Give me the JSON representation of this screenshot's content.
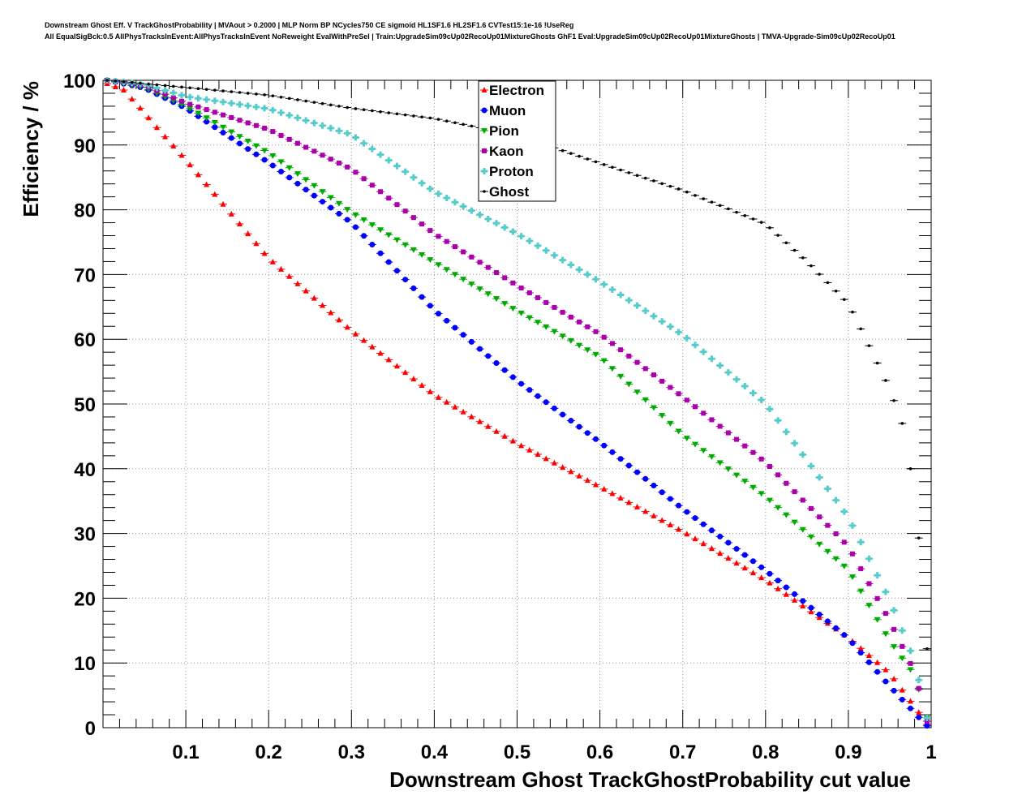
{
  "chart_data": {
    "type": "scatter",
    "title_line1": "Downstream Ghost Eff. V TrackGhostProbability | MVAout > 0.2000 | MLP Norm BP NCycles750 CE sigmoid HL1SF1.6 HL2SF1.6 CVTest15:1e-16 !UseReg",
    "title_line2": "All EqualSigBck:0.5 AllPhysTracksInEvent:AllPhysTracksInEvent NoReweight EvalWithPreSel | Train:UpgradeSim09cUp02RecoUp01MixtureGhosts GhF1 Eval:UpgradeSim09cUp02RecoUp01MixtureGhosts | TMVA-Upgrade-Sim09cUp02RecoUp01",
    "xlabel": "Downstream Ghost TrackGhostProbability cut value",
    "ylabel": "Efficiency / %",
    "xlim": [
      0,
      1
    ],
    "ylim": [
      0,
      100
    ],
    "bins": 100,
    "xticks": [
      "0.1",
      "0.2",
      "0.3",
      "0.4",
      "0.5",
      "0.6",
      "0.7",
      "0.8",
      "0.9",
      "1"
    ],
    "yticks": [
      "0",
      "10",
      "20",
      "30",
      "40",
      "50",
      "60",
      "70",
      "80",
      "90",
      "100"
    ],
    "grid": true,
    "legend_position": "top-center",
    "series": [
      {
        "name": "Electron",
        "color": "#ff0000",
        "marker": "triangle-up",
        "x": [
          0.005,
          0.025,
          0.045,
          0.065,
          0.1,
          0.2,
          0.3,
          0.4,
          0.5,
          0.6,
          0.7,
          0.8,
          0.9,
          0.95,
          0.99,
          0.995
        ],
        "y": [
          99.5,
          98.5,
          95.7,
          92.7,
          87.7,
          72.5,
          61.3,
          51.4,
          43.9,
          37.2,
          30.3,
          22.8,
          13.9,
          8.4,
          1.5,
          0.5
        ]
      },
      {
        "name": "Muon",
        "color": "#0000ff",
        "marker": "circle",
        "x": [
          0.005,
          0.05,
          0.1,
          0.2,
          0.3,
          0.4,
          0.5,
          0.6,
          0.7,
          0.8,
          0.9,
          0.95,
          0.985,
          0.995
        ],
        "y": [
          100,
          98.8,
          95.7,
          87.3,
          78,
          64.5,
          53.6,
          44.1,
          33.8,
          24.3,
          13.8,
          6.4,
          1.6,
          0.3
        ]
      },
      {
        "name": "Pion",
        "color": "#00aa00",
        "marker": "triangle-down",
        "x": [
          0.005,
          0.05,
          0.1,
          0.2,
          0.3,
          0.4,
          0.5,
          0.6,
          0.7,
          0.8,
          0.9,
          0.95,
          0.98,
          0.995
        ],
        "y": [
          100,
          98.9,
          96,
          88.8,
          79.6,
          71.9,
          64.4,
          57.3,
          45.2,
          35.7,
          24.4,
          13.4,
          8.1,
          1.5
        ]
      },
      {
        "name": "Kaon",
        "color": "#aa00aa",
        "marker": "square",
        "x": [
          0.005,
          0.05,
          0.1,
          0.2,
          0.3,
          0.4,
          0.5,
          0.6,
          0.7,
          0.8,
          0.9,
          0.95,
          0.98,
          0.995
        ],
        "y": [
          100,
          99.2,
          96.5,
          92.4,
          86.3,
          76.3,
          68.3,
          60.8,
          51.1,
          41,
          28,
          16.5,
          8.6,
          1
        ]
      },
      {
        "name": "Proton",
        "color": "#55cccc",
        "marker": "cross",
        "x": [
          0.005,
          0.05,
          0.1,
          0.2,
          0.3,
          0.4,
          0.5,
          0.6,
          0.7,
          0.8,
          0.9,
          0.95,
          0.98,
          0.995
        ],
        "y": [
          100,
          99.4,
          97.5,
          95.6,
          91.6,
          82.8,
          76.3,
          68.9,
          60.7,
          50.1,
          32.5,
          19.7,
          10.3,
          1.5
        ]
      },
      {
        "name": "Ghost",
        "color": "#000000",
        "marker": "dot",
        "x": [
          0.005,
          0.1,
          0.2,
          0.3,
          0.4,
          0.5,
          0.6,
          0.7,
          0.8,
          0.85,
          0.9,
          0.925,
          0.95,
          0.965,
          0.975,
          0.985,
          0.995
        ],
        "y": [
          100,
          98.9,
          97.7,
          95.7,
          94.1,
          91.5,
          87.2,
          83,
          77.8,
          72,
          65.5,
          59,
          52.3,
          47,
          40,
          29.3,
          12.2
        ]
      }
    ]
  }
}
